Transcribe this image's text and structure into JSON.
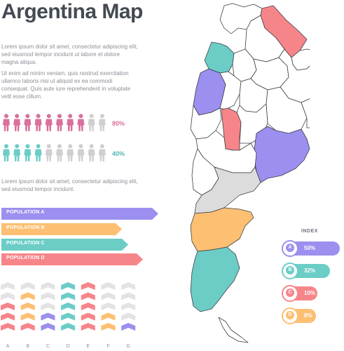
{
  "title": "Argentina Map",
  "paragraphs": [
    "Lorem ipsum dolor sit amet, consectetur adipiscing elit, sed eiusmod tempor incidunt ut labore et dolore magna aliqua.",
    "Ut enim ad minim veniam, quis nostrud exercitation ullamco laboris nisi ut aliquid ex ea commodi consequat. Quis aute iure reprehenderit in voluptate velit esse cillum.",
    "Lorem ipsum dolor sit amet, consectetur adipiscing elit, sed eiusmod tempor incidunt."
  ],
  "people_stats": [
    {
      "value": "80%",
      "color": "#d9709d",
      "filled": 8,
      "total": 10
    },
    {
      "value": "40%",
      "color": "#6ccdc7",
      "filled": 4,
      "total": 10
    }
  ],
  "populations": [
    {
      "label": "POPULATION A",
      "color": "#9b90ef",
      "length": 1.0
    },
    {
      "label": "POPULATION B",
      "color": "#fdbf72",
      "length": 0.77
    },
    {
      "label": "POPULATION C",
      "color": "#6ccdc7",
      "length": 0.81
    },
    {
      "label": "POPULATION D",
      "color": "#f6858a",
      "length": 0.9
    }
  ],
  "chevron_columns": [
    {
      "label": "A",
      "colors": [
        "#e3e3e3",
        "#e3e3e3",
        "#f6858a",
        "#f6858a",
        "#f6858a"
      ]
    },
    {
      "label": "B",
      "colors": [
        "#e3e3e3",
        "#fdbf72",
        "#fdbf72",
        "#fdbf72",
        "#f6858a"
      ]
    },
    {
      "label": "C",
      "colors": [
        "#e3e3e3",
        "#e3e3e3",
        "#e3e3e3",
        "#9b90ef",
        "#9b90ef"
      ]
    },
    {
      "label": "D",
      "colors": [
        "#6ccdc7",
        "#6ccdc7",
        "#6ccdc7",
        "#6ccdc7",
        "#6ccdc7"
      ]
    },
    {
      "label": "E",
      "colors": [
        "#f6858a",
        "#f6858a",
        "#f6858a",
        "#f6858a",
        "#f6858a"
      ]
    },
    {
      "label": "F",
      "colors": [
        "#e3e3e3",
        "#e3e3e3",
        "#e3e3e3",
        "#fdbf72",
        "#fdbf72"
      ]
    },
    {
      "label": "G",
      "colors": [
        "#e3e3e3",
        "#e3e3e3",
        "#e3e3e3",
        "#e3e3e3",
        "#9b90ef"
      ]
    }
  ],
  "index": {
    "title": "INDEX",
    "items": [
      {
        "letter": "A",
        "value": "50%",
        "color": "#9b90ef",
        "fill": 0.5
      },
      {
        "letter": "B",
        "value": "32%",
        "color": "#6ccdc7",
        "fill": 0.32
      },
      {
        "letter": "C",
        "value": "10%",
        "color": "#f6858a",
        "fill": 0.1
      },
      {
        "letter": "D",
        "value": "8%",
        "color": "#fdbf72",
        "fill": 0.08
      }
    ]
  },
  "map_colors": {
    "gray": "#dcdcdc",
    "outline": "#3a3d42",
    "white": "#ffffff"
  }
}
